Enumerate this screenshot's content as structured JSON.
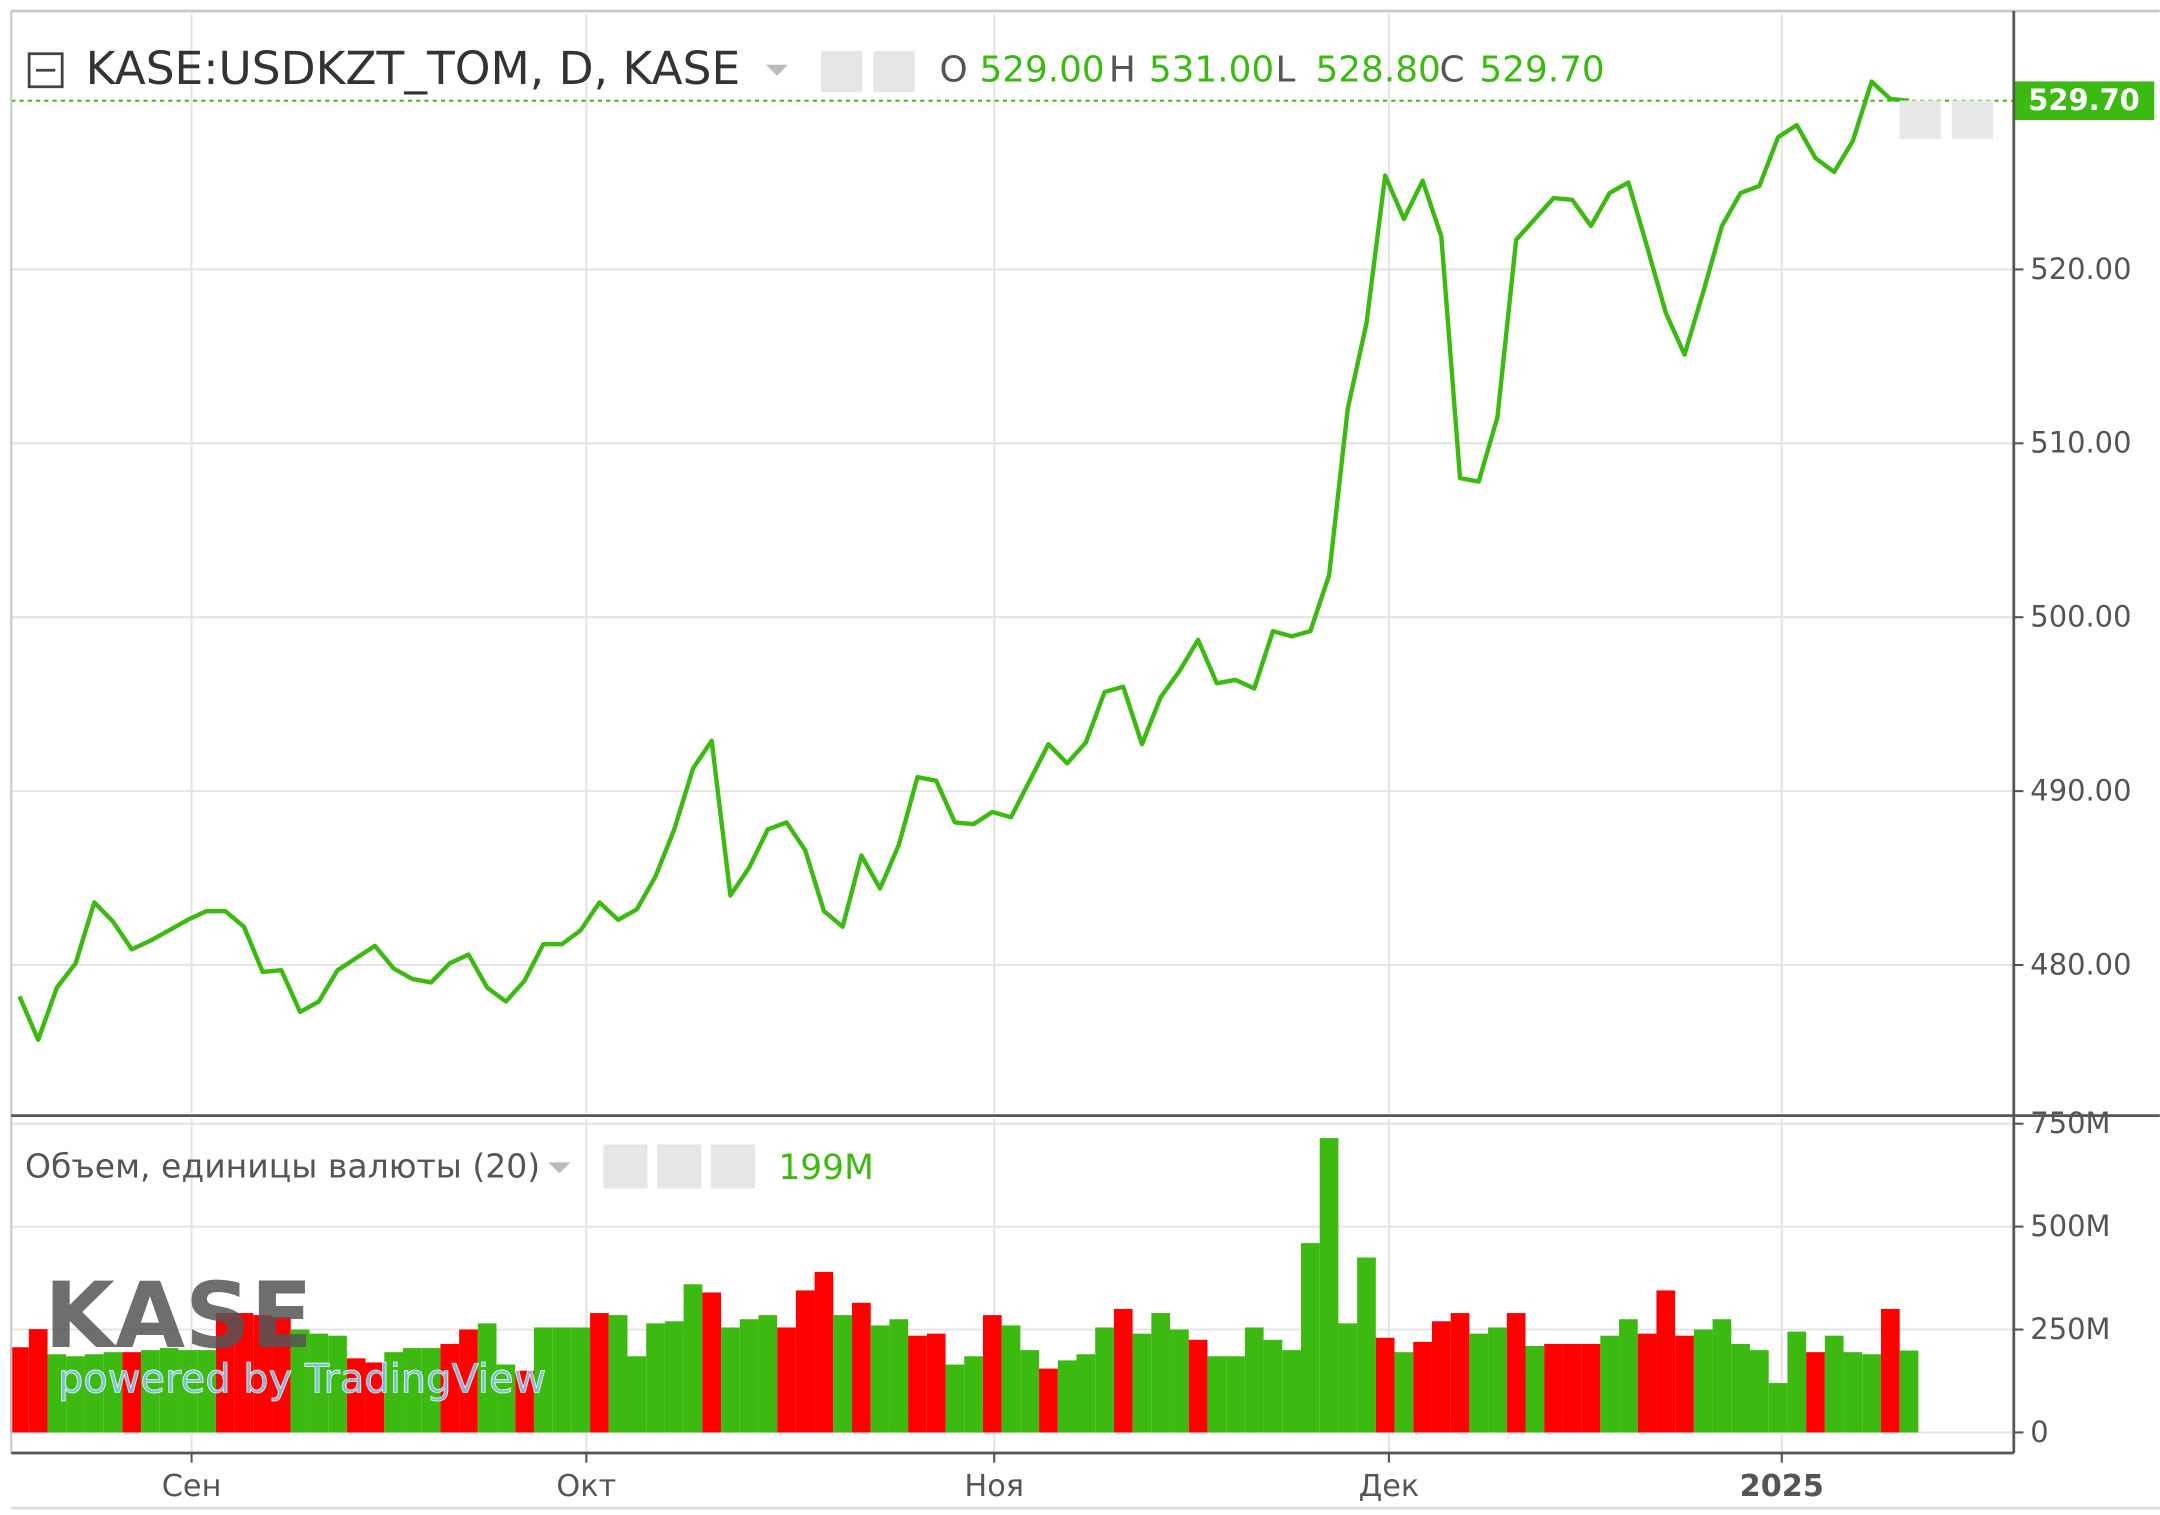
{
  "chart_data": [
    {
      "type": "line",
      "title": "KASE:USDKZT_TOM, D, KASE",
      "ohlc": [
        {
          "label": "O",
          "value": "529.00"
        },
        {
          "label": "H",
          "value": "531.00"
        },
        {
          "label": "L",
          "value": "528.80"
        },
        {
          "label": "C",
          "value": "529.70"
        }
      ],
      "last_value_label": "529.70",
      "color": "#3dba12",
      "grid": true,
      "values": [
        478.2,
        475.7,
        478.7,
        480.1,
        483.6,
        482.5,
        480.9,
        481.4,
        482.0,
        482.6,
        483.1,
        483.1,
        482.2,
        479.6,
        479.7,
        477.3,
        477.9,
        479.7,
        480.4,
        481.1,
        479.8,
        479.2,
        479.0,
        480.1,
        480.6,
        478.7,
        477.9,
        479.1,
        481.2,
        481.2,
        482.0,
        483.6,
        482.6,
        483.2,
        485.1,
        487.8,
        491.3,
        492.9,
        484.0,
        485.6,
        487.8,
        488.2,
        486.6,
        483.1,
        482.2,
        486.3,
        484.4,
        486.9,
        490.8,
        490.6,
        488.2,
        488.1,
        488.8,
        488.5,
        490.6,
        492.7,
        491.6,
        492.8,
        495.7,
        496.0,
        492.7,
        495.4,
        496.9,
        498.7,
        496.2,
        496.4,
        495.9,
        499.2,
        498.9,
        499.2,
        502.4,
        512.0,
        516.9,
        525.4,
        522.9,
        525.1,
        521.9,
        508.0,
        507.8,
        511.5,
        521.7,
        522.9,
        524.1,
        524.0,
        522.5,
        524.4,
        525.0,
        521.3,
        517.5,
        515.1,
        518.7,
        522.5,
        524.4,
        524.8,
        527.6,
        528.3,
        526.4,
        525.6,
        527.4,
        530.8,
        529.8,
        529.7
      ],
      "xlim": [
        -0.44,
        106.6
      ],
      "ylim": [
        471.5,
        534.7
      ],
      "yticks": [
        {
          "value": 480,
          "label": "480.00"
        },
        {
          "value": 490,
          "label": "490.00"
        },
        {
          "value": 500,
          "label": "500.00"
        },
        {
          "value": 510,
          "label": "510.00"
        },
        {
          "value": 520,
          "label": "520.00"
        }
      ]
    },
    {
      "type": "bar",
      "title": "Объем, единицы валюты (20)",
      "legend_value": "199M",
      "grid": true,
      "values": [
        207,
        251,
        190,
        185,
        190,
        195,
        195,
        200,
        205,
        200,
        200,
        290,
        290,
        285,
        280,
        250,
        240,
        235,
        180,
        170,
        195,
        205,
        205,
        215,
        250,
        265,
        165,
        150,
        255,
        255,
        255,
        290,
        285,
        185,
        265,
        270,
        360,
        340,
        255,
        275,
        285,
        255,
        345,
        390,
        285,
        315,
        260,
        275,
        235,
        240,
        165,
        185,
        285,
        260,
        200,
        155,
        175,
        190,
        255,
        300,
        240,
        290,
        250,
        225,
        185,
        185,
        255,
        225,
        200,
        460,
        715,
        265,
        425,
        230,
        195,
        220,
        270,
        290,
        240,
        255,
        290,
        210,
        215,
        215,
        215,
        235,
        275,
        240,
        345,
        235,
        250,
        275,
        215,
        200,
        120,
        245,
        195,
        235,
        195,
        190,
        300,
        199
      ],
      "colors": [
        "#ff0000",
        "#ff0000",
        "#3dba12",
        "#3dba12",
        "#3dba12",
        "#3dba12",
        "#ff0000",
        "#3dba12",
        "#3dba12",
        "#3dba12",
        "#3dba12",
        "#ff0000",
        "#ff0000",
        "#ff0000",
        "#ff0000",
        "#3dba12",
        "#3dba12",
        "#3dba12",
        "#ff0000",
        "#ff0000",
        "#3dba12",
        "#3dba12",
        "#3dba12",
        "#ff0000",
        "#ff0000",
        "#3dba12",
        "#3dba12",
        "#ff0000",
        "#3dba12",
        "#3dba12",
        "#3dba12",
        "#ff0000",
        "#3dba12",
        "#3dba12",
        "#3dba12",
        "#3dba12",
        "#3dba12",
        "#ff0000",
        "#3dba12",
        "#3dba12",
        "#3dba12",
        "#ff0000",
        "#ff0000",
        "#ff0000",
        "#3dba12",
        "#ff0000",
        "#3dba12",
        "#3dba12",
        "#ff0000",
        "#ff0000",
        "#3dba12",
        "#3dba12",
        "#ff0000",
        "#3dba12",
        "#3dba12",
        "#ff0000",
        "#3dba12",
        "#3dba12",
        "#3dba12",
        "#ff0000",
        "#3dba12",
        "#3dba12",
        "#3dba12",
        "#ff0000",
        "#3dba12",
        "#3dba12",
        "#3dba12",
        "#3dba12",
        "#3dba12",
        "#3dba12",
        "#3dba12",
        "#3dba12",
        "#3dba12",
        "#ff0000",
        "#3dba12",
        "#ff0000",
        "#ff0000",
        "#ff0000",
        "#3dba12",
        "#3dba12",
        "#ff0000",
        "#3dba12",
        "#ff0000",
        "#ff0000",
        "#ff0000",
        "#3dba12",
        "#3dba12",
        "#ff0000",
        "#ff0000",
        "#ff0000",
        "#3dba12",
        "#3dba12",
        "#3dba12",
        "#3dba12",
        "#3dba12",
        "#3dba12",
        "#ff0000",
        "#3dba12",
        "#3dba12",
        "#3dba12",
        "#ff0000",
        "#3dba12"
      ],
      "xlim": [
        -0.44,
        106.6
      ],
      "xticks": [
        {
          "value": 9.2,
          "label": "Сен"
        },
        {
          "value": 30.3,
          "label": "Окт"
        },
        {
          "value": 52.1,
          "label": "Ноя"
        },
        {
          "value": 73.2,
          "label": "Дек"
        },
        {
          "value": 94.2,
          "label": "2025"
        }
      ],
      "ylim": [
        -50,
        763
      ],
      "yticks": [
        0,
        {
          "value": 250,
          "label": "250M"
        },
        {
          "value": 500,
          "label": "500M"
        },
        {
          "value": 750,
          "label": "750M"
        }
      ]
    }
  ],
  "watermark": {
    "logo": "KASE",
    "text": "powered by TradingView"
  }
}
